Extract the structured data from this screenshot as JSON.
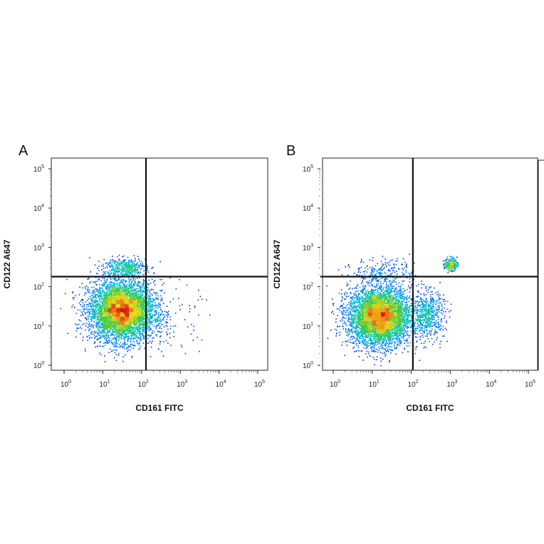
{
  "chart_data": [
    {
      "type": "scatter",
      "panel_label": "A",
      "xlabel": "CD161 FITC",
      "ylabel": "CD122 A647",
      "x_scale": "log",
      "y_scale": "log",
      "xlim": [
        1,
        100000
      ],
      "ylim": [
        1,
        100000
      ],
      "x_ticks": [
        "10",
        "10",
        "10",
        "10",
        "10",
        "10"
      ],
      "x_tick_exponents": [
        "0",
        "1",
        "2",
        "3",
        "4",
        "5"
      ],
      "y_ticks": [
        "10",
        "10",
        "10",
        "10",
        "10",
        "10"
      ],
      "y_tick_exponents": [
        "0",
        "1",
        "2",
        "3",
        "4",
        "5"
      ],
      "gate": {
        "x": 130,
        "y": 180
      },
      "populations": [
        {
          "center": [
            30,
            25
          ],
          "spread": [
            0.42,
            0.38
          ],
          "count": 5200
        },
        {
          "center": [
            35,
            320
          ],
          "spread": [
            0.28,
            0.12
          ],
          "count": 420
        },
        {
          "center": [
            400,
            15
          ],
          "spread": [
            0.45,
            0.45
          ],
          "count": 120
        }
      ],
      "grid": false
    },
    {
      "type": "scatter",
      "panel_label": "B",
      "xlabel": "CD161 FITC",
      "ylabel": "CD122 A647",
      "x_scale": "log",
      "y_scale": "log",
      "xlim": [
        1,
        100000
      ],
      "ylim": [
        1,
        100000
      ],
      "x_ticks": [
        "10",
        "10",
        "10",
        "10",
        "10",
        "10"
      ],
      "x_tick_exponents": [
        "0",
        "1",
        "2",
        "3",
        "4",
        "5"
      ],
      "y_ticks": [
        "10",
        "10",
        "10",
        "10",
        "10",
        "10"
      ],
      "y_tick_exponents": [
        "0",
        "1",
        "2",
        "3",
        "4",
        "5"
      ],
      "gate": {
        "x": 110,
        "y": 180
      },
      "populations": [
        {
          "center": [
            15,
            18
          ],
          "spread": [
            0.4,
            0.37
          ],
          "count": 5000
        },
        {
          "center": [
            250,
            20
          ],
          "spread": [
            0.22,
            0.3
          ],
          "count": 600
        },
        {
          "center": [
            1000,
            380
          ],
          "spread": [
            0.08,
            0.08
          ],
          "count": 220
        },
        {
          "center": [
            20,
            260
          ],
          "spread": [
            0.4,
            0.15
          ],
          "count": 200
        }
      ],
      "grid": false
    }
  ]
}
